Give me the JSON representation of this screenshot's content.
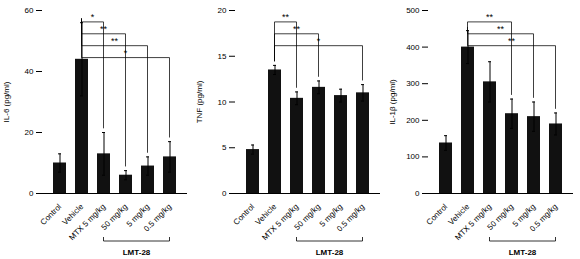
{
  "chart_data": [
    {
      "type": "bar",
      "categories": [
        "Control",
        "Vehicle",
        "MTX 5 mg/kg",
        "50 mg/kg",
        "5 mg/kg",
        "0.5 mg/kg"
      ],
      "values": [
        10,
        44,
        13,
        6,
        9,
        12
      ],
      "errors": [
        3,
        12,
        7,
        1.5,
        3,
        5
      ],
      "color": "#111111",
      "ylabel": "IL-6 (pg/ml)",
      "ylim": [
        0,
        60
      ],
      "yticks": [
        0,
        20,
        40,
        60
      ],
      "significance": [
        {
          "from": 1,
          "to": 2,
          "label": "*"
        },
        {
          "from": 1,
          "to": 3,
          "label": "**"
        },
        {
          "from": 1,
          "to": 4,
          "label": "**"
        },
        {
          "from": 1,
          "to": 5,
          "label": "*"
        }
      ],
      "annotations": [
        {
          "text": "LMT-28",
          "from": 2,
          "to": 5
        }
      ]
    },
    {
      "type": "bar",
      "categories": [
        "Control",
        "Vehicle",
        "MTX 5 mg/kg",
        "50 mg/kg",
        "5 mg/kg",
        "0.5 mg/kg"
      ],
      "values": [
        4.8,
        13.5,
        10.4,
        11.6,
        10.7,
        11.0
      ],
      "errors": [
        0.5,
        0.5,
        0.7,
        0.7,
        0.7,
        0.9
      ],
      "color": "#111111",
      "ylabel": "TNF (pg/ml)",
      "ylim": [
        0,
        20
      ],
      "yticks": [
        0,
        5,
        10,
        15,
        20
      ],
      "significance": [
        {
          "from": 1,
          "to": 2,
          "label": "**"
        },
        {
          "from": 1,
          "to": 3,
          "label": "**"
        },
        {
          "from": 1,
          "to": 5,
          "label": "*"
        }
      ],
      "annotations": [
        {
          "text": "LMT-28",
          "from": 2,
          "to": 5
        }
      ]
    },
    {
      "type": "bar",
      "categories": [
        "Control",
        "Vehicle",
        "MTX 5 mg/kg",
        "50 mg/kg",
        "5 mg/kg",
        "0.5 mg/kg"
      ],
      "values": [
        138,
        400,
        305,
        218,
        210,
        190
      ],
      "errors": [
        20,
        45,
        55,
        40,
        40,
        30
      ],
      "color": "#111111",
      "ylabel": "IL-1β (pg/ml)",
      "ylim": [
        0,
        500
      ],
      "yticks": [
        0,
        100,
        200,
        300,
        400,
        500
      ],
      "significance": [
        {
          "from": 1,
          "to": 3,
          "label": "**"
        },
        {
          "from": 1,
          "to": 4,
          "label": "**"
        },
        {
          "from": 1,
          "to": 5,
          "label": "**"
        }
      ],
      "annotations": [
        {
          "text": "LMT-28",
          "from": 2,
          "to": 5
        }
      ]
    }
  ]
}
